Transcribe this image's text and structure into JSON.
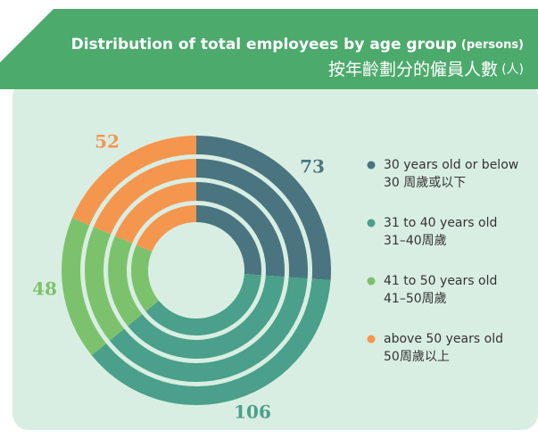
{
  "chart_data": {
    "type": "pie",
    "title": "Distribution of total employees by age group",
    "title_unit": "(persons)",
    "title_zh": "按年齡劃分的僱員人數",
    "title_zh_unit": "(人)",
    "series": [
      {
        "name": "30 years old or below",
        "name_zh": "30 周歲或以下",
        "color": "#4a7580",
        "values": [
          73
        ]
      },
      {
        "name": "31 to 40 years old",
        "name_zh": "31–40周歲",
        "color": "#4aa08a",
        "values": [
          106
        ]
      },
      {
        "name": "41 to 50 years old",
        "name_zh": "41–50周歲",
        "color": "#7cc26c",
        "values": [
          48
        ]
      },
      {
        "name": "above 50 years old",
        "name_zh": "50周歲以上",
        "color": "#f5964f",
        "values": [
          52
        ]
      }
    ],
    "legend": "right"
  }
}
